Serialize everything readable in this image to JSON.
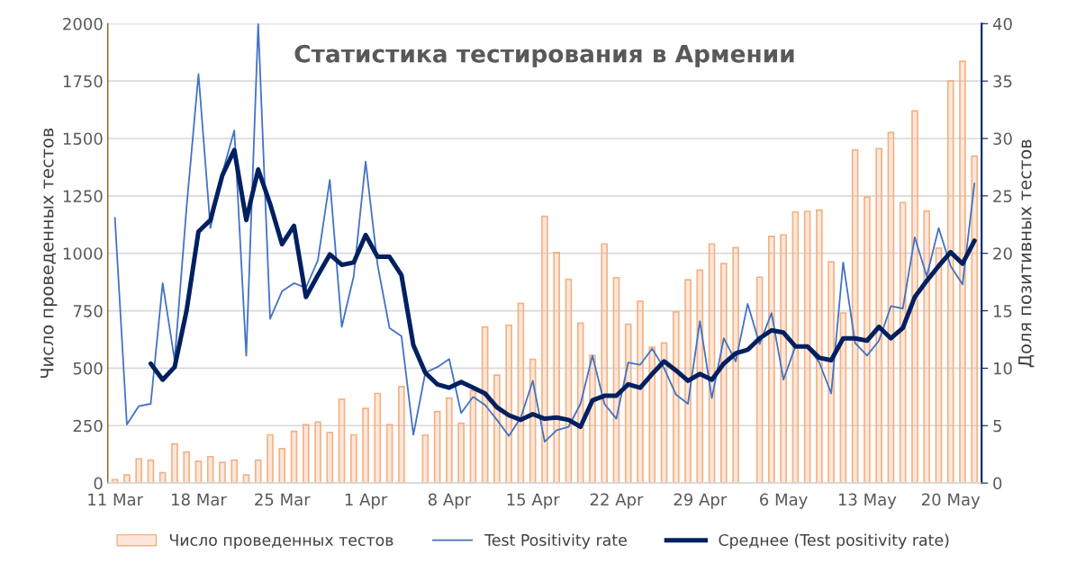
{
  "chart_data": {
    "type": "bar",
    "title": "Статистика тестирования в Армении",
    "ylabel": "Число проведенных тестов",
    "y2label": "Доля позитивных тестов",
    "categories": [
      "11 Mar",
      null,
      null,
      null,
      null,
      null,
      null,
      "18 Mar",
      null,
      null,
      null,
      null,
      null,
      null,
      "25 Mar",
      null,
      null,
      null,
      null,
      null,
      null,
      "1 Apr",
      null,
      null,
      null,
      null,
      null,
      null,
      "8 Apr",
      null,
      null,
      null,
      null,
      null,
      null,
      "15 Apr",
      null,
      null,
      null,
      null,
      null,
      null,
      "22 Apr",
      null,
      null,
      null,
      null,
      null,
      null,
      "29 Apr",
      null,
      null,
      null,
      null,
      null,
      null,
      "6 May",
      null,
      null,
      null,
      null,
      null,
      null,
      "13 May",
      null,
      null,
      null,
      null,
      null,
      null,
      "20 May",
      null,
      null
    ],
    "series": [
      {
        "name": "Число проведенных тестов",
        "color": "#f4b183",
        "values": [
          15,
          35,
          105,
          100,
          45,
          170,
          135,
          95,
          115,
          90,
          100,
          35,
          100,
          210,
          150,
          225,
          255,
          265,
          220,
          365,
          210,
          325,
          390,
          255,
          420,
          null,
          209,
          311,
          370,
          260,
          402,
          679,
          470,
          687,
          782,
          538,
          1161,
          1003,
          887,
          696,
          555,
          1041,
          894,
          691,
          791,
          591,
          610,
          745,
          885,
          927,
          1041,
          955,
          1025,
          null,
          896,
          1074,
          1080,
          1180,
          1183,
          1188,
          963,
          740,
          1450,
          1245,
          1456,
          1526,
          1221,
          1620,
          1184,
          1023,
          1751,
          1836,
          1423
        ]
      },
      {
        "name": "Test Positivity rate",
        "type": "line",
        "axis": "y2",
        "color": "#4472c4",
        "values": [
          23.1,
          5.1,
          6.7,
          6.9,
          17.4,
          10.7,
          24,
          35.6,
          22.2,
          27,
          30.7,
          11.1,
          40,
          14.3,
          16.7,
          17.4,
          17,
          19.4,
          26.4,
          13.6,
          18,
          28,
          19,
          13.5,
          12.8,
          4.2,
          9.6,
          10.1,
          10.8,
          6.1,
          7.5,
          6.8,
          5.5,
          4.1,
          5.7,
          8.9,
          3.6,
          4.6,
          4.9,
          6.9,
          11.1,
          6.9,
          5.6,
          10.5,
          10.3,
          11.7,
          10,
          7.7,
          6.9,
          14.1,
          7.4,
          12.6,
          10.6,
          15.6,
          12.1,
          14.8,
          9,
          11.9,
          11.9,
          10.5,
          7.8,
          19.2,
          12.2,
          11.1,
          12.4,
          15.4,
          15.2,
          21.4,
          18,
          22.2,
          18.9,
          17.3,
          26.1
        ]
      },
      {
        "name": "Среднее (Test positivity rate)",
        "type": "line",
        "axis": "y2",
        "color": "#002060",
        "values": [
          null,
          null,
          null,
          10.4,
          9,
          10.1,
          15,
          21.9,
          22.9,
          26.8,
          29,
          22.9,
          27.3,
          24.3,
          20.8,
          22.4,
          16.2,
          18.1,
          19.9,
          19,
          19.2,
          21.6,
          19.7,
          19.7,
          18.1,
          12,
          9.6,
          8.6,
          8.3,
          8.8,
          8.3,
          7.8,
          6.6,
          5.9,
          5.5,
          6,
          5.6,
          5.7,
          5.5,
          4.9,
          7.2,
          7.6,
          7.6,
          8.6,
          8.3,
          9.5,
          10.6,
          9.8,
          8.9,
          9.5,
          9,
          10.4,
          11.3,
          11.6,
          12.6,
          13.3,
          13.1,
          11.9,
          11.9,
          10.9,
          10.7,
          12.6,
          12.6,
          12.4,
          13.6,
          12.6,
          13.5,
          16.2,
          17.6,
          18.9,
          20.1,
          19.1,
          21.1
        ]
      }
    ],
    "ylim": [
      0,
      2000
    ],
    "yticks": [
      0,
      250,
      500,
      750,
      1000,
      1250,
      1500,
      1750,
      2000
    ],
    "y2lim": [
      0,
      40
    ],
    "y2ticks": [
      0,
      5,
      10,
      15,
      20,
      25,
      30,
      35,
      40
    ],
    "grid": "y",
    "legend": "bottom"
  }
}
